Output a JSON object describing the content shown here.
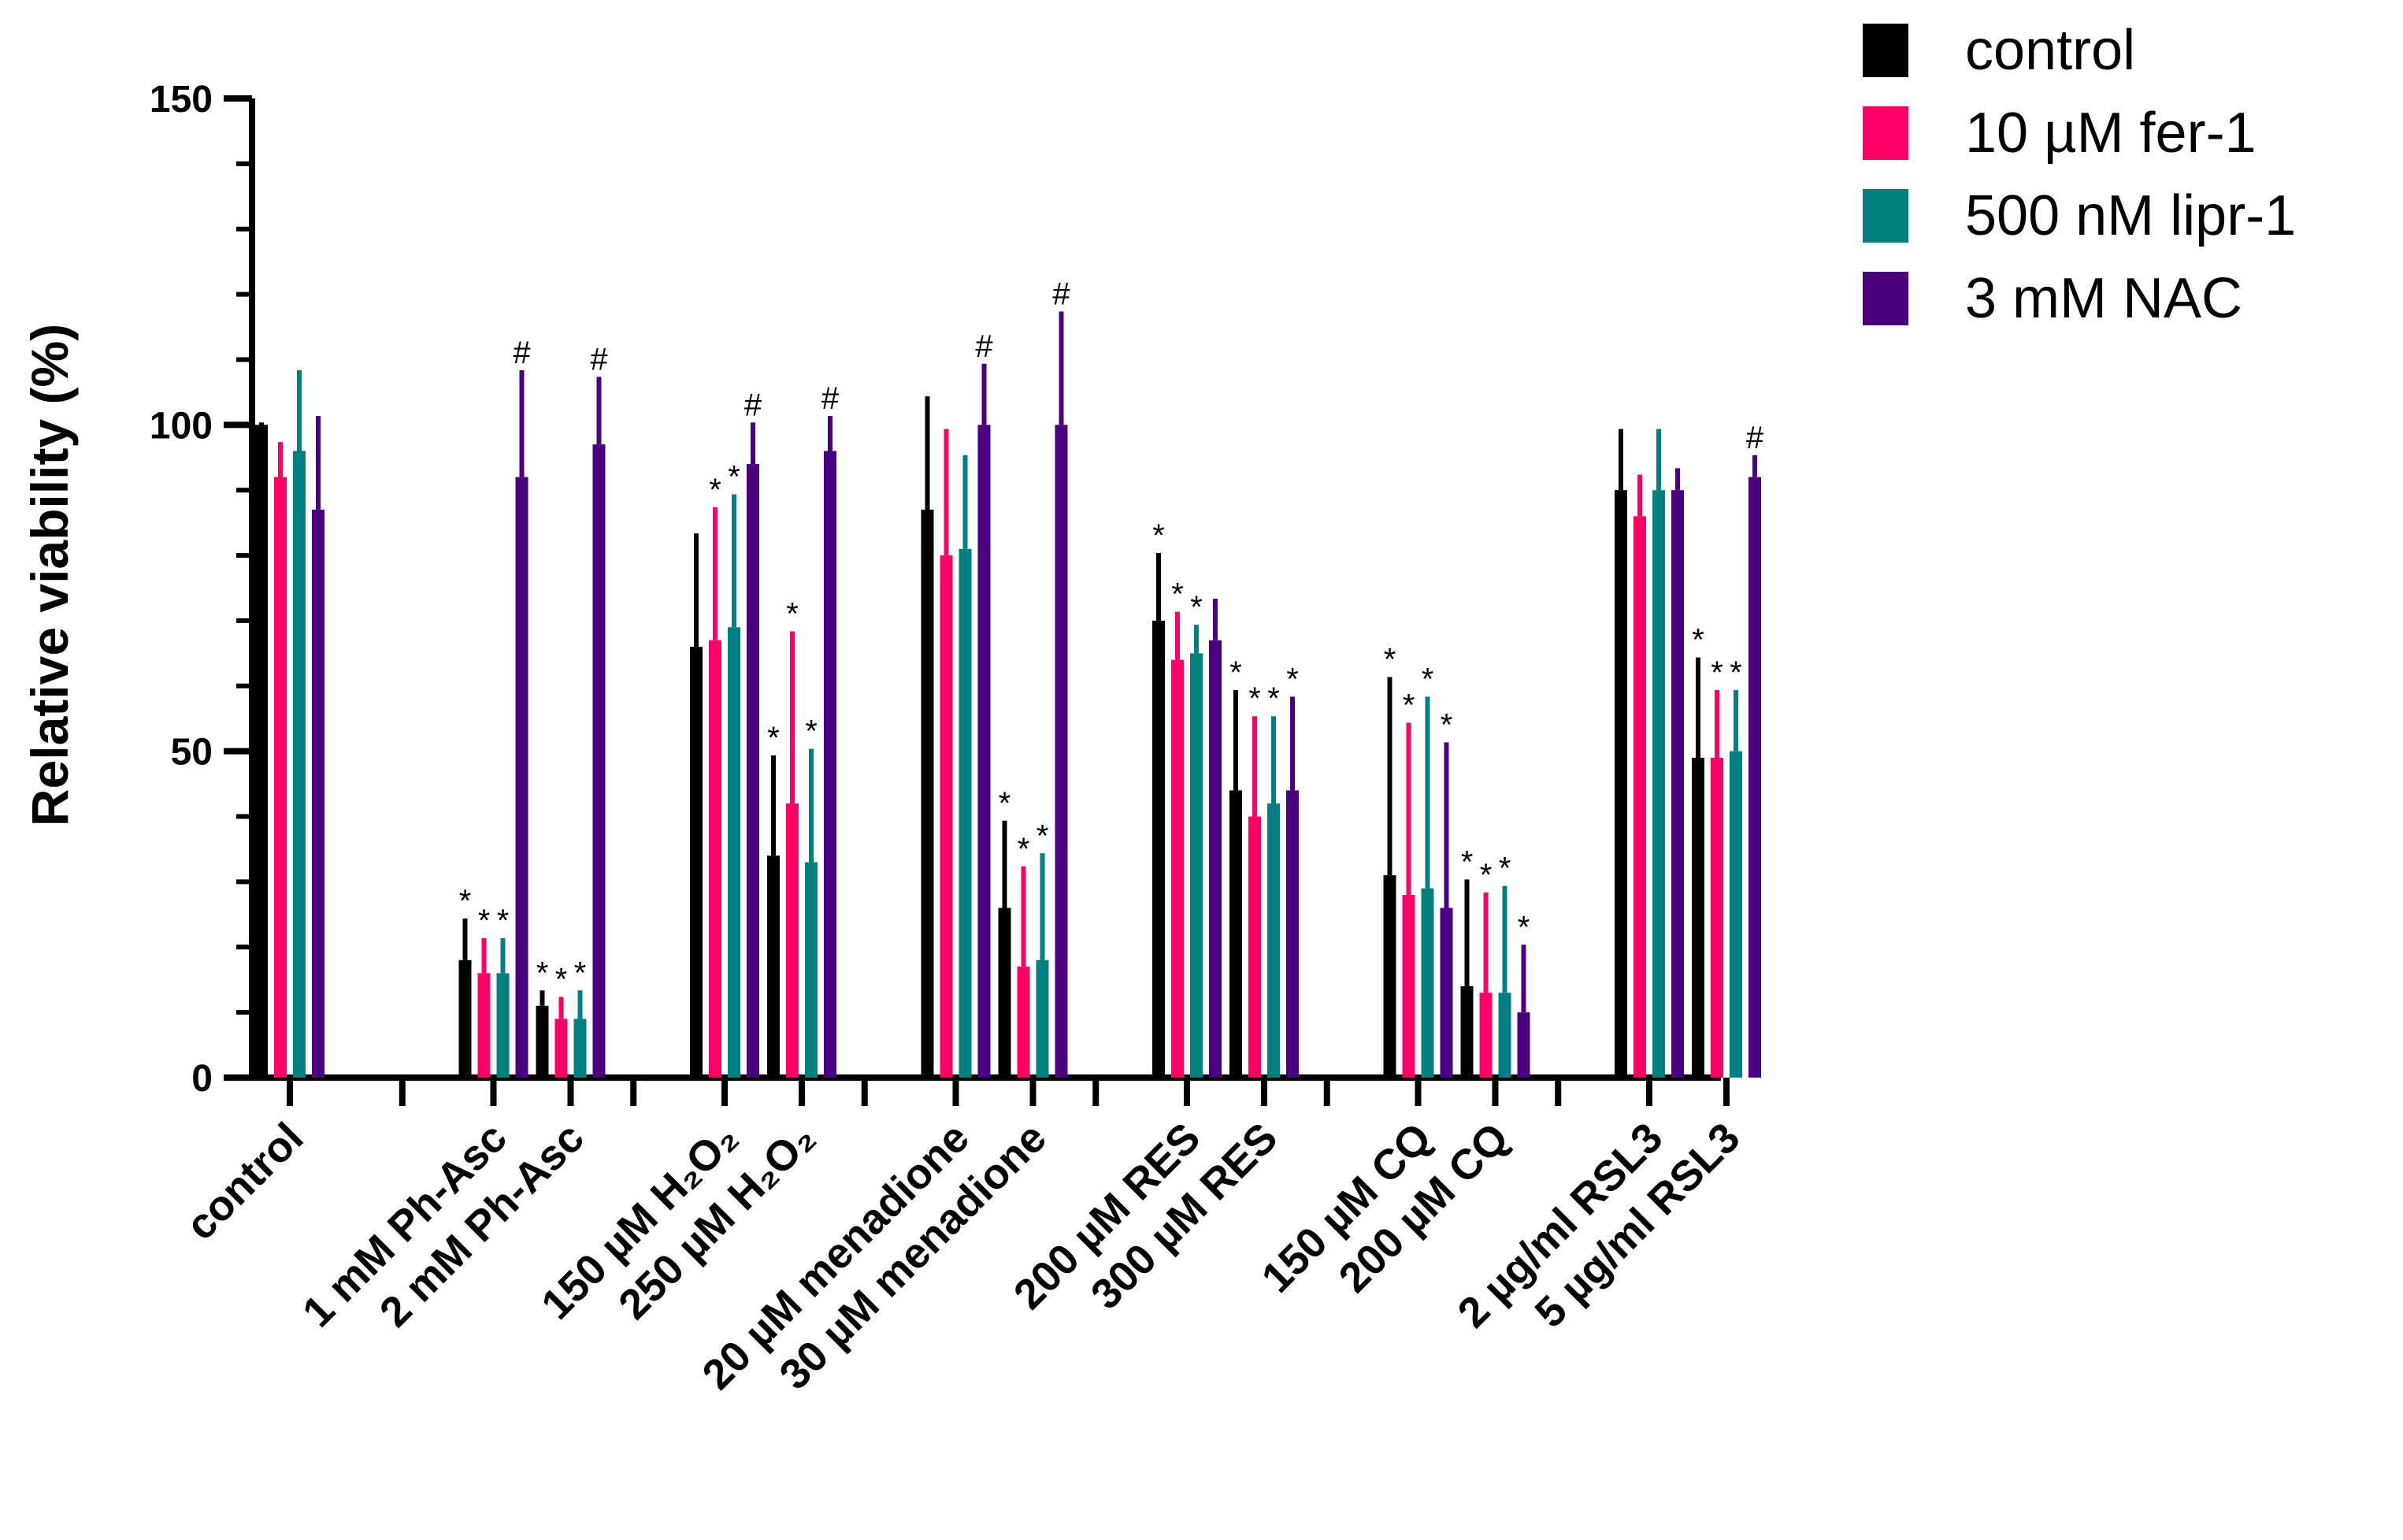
{
  "chart_data": {
    "type": "bar",
    "ylabel": "Relative viability (%)",
    "xlabel": "",
    "ylim": [
      0,
      150
    ],
    "yticks": [
      "0",
      "50",
      "100",
      "150"
    ],
    "categories": [
      "control",
      "1 mM Ph-Asc",
      "2 mM Ph-Asc",
      "150 µM H₂O₂",
      "250 µM H₂O₂",
      "20 µM menadione",
      "30 µM menadione",
      "200 µM RES",
      "300 µM RES",
      "150 µM CQ",
      "200 µM CQ",
      "2 µg/ml RSL3",
      "5 µg/ml RSL3"
    ],
    "series": [
      {
        "name": "control",
        "color": "#000000",
        "values": [
          100,
          18,
          11,
          66,
          34,
          87,
          26,
          70,
          44,
          31,
          14,
          90,
          49
        ],
        "err": [
          100,
          24,
          13,
          83,
          49,
          104,
          39,
          80,
          59,
          61,
          30,
          99,
          64
        ],
        "annot": [
          "",
          "*",
          "*",
          "",
          "*",
          "",
          "*",
          "*",
          "*",
          "*",
          "*",
          "",
          "*"
        ]
      },
      {
        "name": "10 µM fer-1",
        "color": "#ff0066",
        "values": [
          92,
          16,
          9,
          67,
          42,
          80,
          17,
          64,
          40,
          28,
          13,
          86,
          49
        ],
        "err": [
          97,
          21,
          12,
          87,
          68,
          99,
          32,
          71,
          55,
          54,
          28,
          92,
          59
        ],
        "annot": [
          "",
          "*",
          "*",
          "*",
          "*",
          "",
          "*",
          "*",
          "*",
          "*",
          "*",
          "",
          "*"
        ]
      },
      {
        "name": "500 nM lipr-1",
        "color": "#008080",
        "values": [
          96,
          16,
          9,
          69,
          33,
          81,
          18,
          65,
          42,
          29,
          13,
          90,
          50
        ],
        "err": [
          108,
          21,
          13,
          89,
          50,
          95,
          34,
          69,
          55,
          58,
          29,
          99,
          59
        ],
        "annot": [
          "",
          "*",
          "*",
          "*",
          "*",
          "",
          "*",
          "*",
          "*",
          "*",
          "*",
          "",
          "*"
        ]
      },
      {
        "name": "3 mM NAC",
        "color": "#4b0082",
        "values": [
          87,
          92,
          97,
          94,
          96,
          100,
          100,
          67,
          44,
          26,
          10,
          90,
          92
        ],
        "err": [
          101,
          108,
          107,
          100,
          101,
          109,
          117,
          73,
          58,
          51,
          20,
          93,
          95
        ],
        "annot": [
          "",
          "#",
          "#",
          "#",
          "#",
          "#",
          "#",
          "",
          "*",
          "*",
          "*",
          "",
          "#"
        ]
      }
    ]
  }
}
